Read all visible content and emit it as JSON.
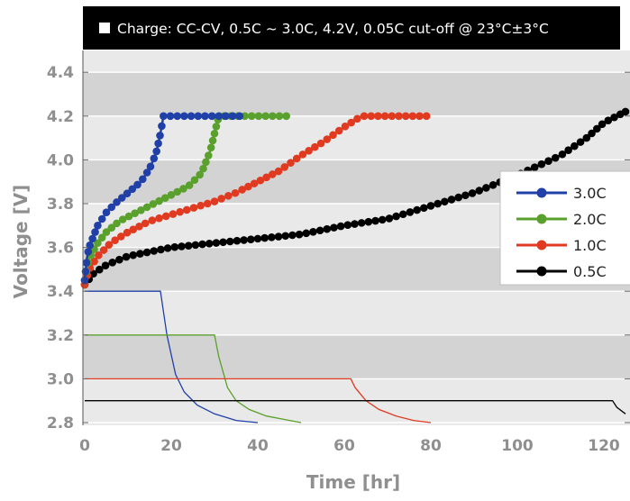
{
  "chart_data": {
    "type": "line",
    "title": "Charge: CC-CV, 0.5C ~ 3.0C, 4.2V, 0.05C cut-off @ 23°C±3°C",
    "xlabel": "Time [hr]",
    "ylabel": "Voltage [V]",
    "xlim": [
      0,
      125
    ],
    "ylim": [
      2.8,
      4.5
    ],
    "xticks": [
      0,
      20,
      40,
      60,
      80,
      100,
      120
    ],
    "yticks": [
      2.8,
      3.0,
      3.2,
      3.4,
      3.6,
      3.8,
      4.0,
      4.2,
      4.4
    ],
    "xtick_labels": [
      "0",
      "20",
      "40",
      "60",
      "80",
      "100",
      "120"
    ],
    "ytick_labels": [
      "2.8",
      "3.0",
      "3.2",
      "3.4",
      "3.6",
      "3.8",
      "4.0",
      "4.2",
      "4.4"
    ],
    "grid": "horizontal alternating bands",
    "legend_position": "right",
    "series": [
      {
        "name": "3.0C",
        "color": "#2040a8",
        "voltage": [
          [
            0,
            3.45
          ],
          [
            0.5,
            3.55
          ],
          [
            1,
            3.6
          ],
          [
            2,
            3.65
          ],
          [
            3,
            3.7
          ],
          [
            5,
            3.76
          ],
          [
            7,
            3.8
          ],
          [
            10,
            3.85
          ],
          [
            13,
            3.9
          ],
          [
            15,
            3.96
          ],
          [
            16.5,
            4.03
          ],
          [
            17.5,
            4.12
          ],
          [
            18.2,
            4.2
          ],
          [
            36,
            4.2
          ]
        ],
        "current": [
          [
            0,
            3.4
          ],
          [
            17.5,
            3.4
          ],
          [
            19,
            3.2
          ],
          [
            21,
            3.02
          ],
          [
            23,
            2.94
          ],
          [
            26,
            2.88
          ],
          [
            30,
            2.84
          ],
          [
            35,
            2.81
          ],
          [
            40,
            2.8
          ]
        ]
      },
      {
        "name": "2.0C",
        "color": "#5aa02c",
        "voltage": [
          [
            0,
            3.45
          ],
          [
            0.5,
            3.5
          ],
          [
            1,
            3.55
          ],
          [
            3,
            3.62
          ],
          [
            5,
            3.67
          ],
          [
            8,
            3.72
          ],
          [
            12,
            3.76
          ],
          [
            16,
            3.8
          ],
          [
            20,
            3.84
          ],
          [
            24,
            3.88
          ],
          [
            27,
            3.94
          ],
          [
            29,
            4.04
          ],
          [
            31,
            4.2
          ],
          [
            47,
            4.2
          ]
        ],
        "current": [
          [
            0,
            3.2
          ],
          [
            30,
            3.2
          ],
          [
            31,
            3.1
          ],
          [
            33,
            2.96
          ],
          [
            35,
            2.9
          ],
          [
            38,
            2.86
          ],
          [
            42,
            2.83
          ],
          [
            46,
            2.815
          ],
          [
            50,
            2.8
          ]
        ]
      },
      {
        "name": "1.0C",
        "color": "#e03a20",
        "voltage": [
          [
            0,
            3.43
          ],
          [
            1,
            3.5
          ],
          [
            3,
            3.56
          ],
          [
            6,
            3.62
          ],
          [
            10,
            3.67
          ],
          [
            15,
            3.72
          ],
          [
            20,
            3.75
          ],
          [
            25,
            3.78
          ],
          [
            30,
            3.81
          ],
          [
            35,
            3.85
          ],
          [
            40,
            3.9
          ],
          [
            45,
            3.95
          ],
          [
            50,
            4.02
          ],
          [
            55,
            4.08
          ],
          [
            60,
            4.15
          ],
          [
            64,
            4.2
          ],
          [
            79,
            4.2
          ]
        ],
        "current": [
          [
            0,
            3.0
          ],
          [
            61.5,
            3.0
          ],
          [
            62.5,
            2.96
          ],
          [
            65,
            2.9
          ],
          [
            68,
            2.86
          ],
          [
            72,
            2.83
          ],
          [
            76,
            2.81
          ],
          [
            80,
            2.8
          ]
        ]
      },
      {
        "name": "0.5C",
        "color": "#000000",
        "voltage": [
          [
            0,
            3.43
          ],
          [
            2,
            3.48
          ],
          [
            5,
            3.52
          ],
          [
            10,
            3.56
          ],
          [
            20,
            3.6
          ],
          [
            30,
            3.62
          ],
          [
            40,
            3.64
          ],
          [
            50,
            3.66
          ],
          [
            60,
            3.7
          ],
          [
            70,
            3.73
          ],
          [
            80,
            3.79
          ],
          [
            90,
            3.85
          ],
          [
            100,
            3.93
          ],
          [
            110,
            4.02
          ],
          [
            116,
            4.1
          ],
          [
            120,
            4.17
          ],
          [
            125,
            4.22
          ]
        ],
        "current": [
          [
            0,
            2.9
          ],
          [
            122,
            2.9
          ],
          [
            123,
            2.87
          ],
          [
            125,
            2.84
          ]
        ]
      }
    ]
  }
}
